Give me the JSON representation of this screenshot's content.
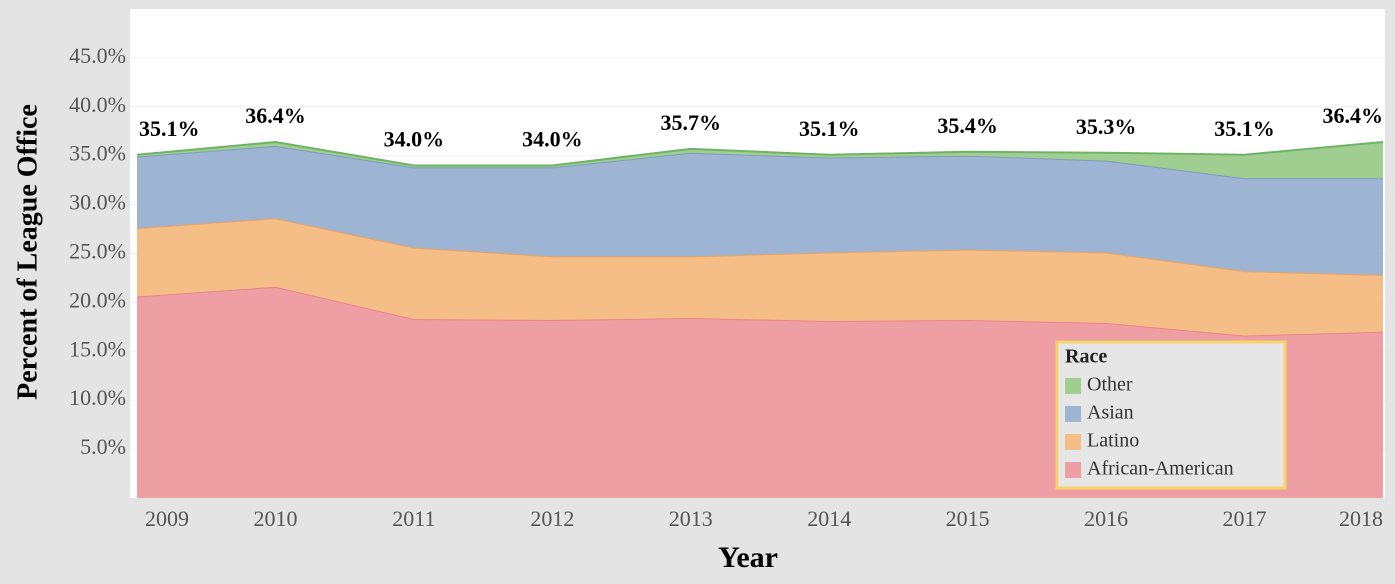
{
  "chart_data": {
    "type": "stacked_area",
    "x_label": "Year",
    "y_label": "Percent of League Office",
    "categories": [
      "2009",
      "2010",
      "2011",
      "2012",
      "2013",
      "2014",
      "2015",
      "2016",
      "2017",
      "2018"
    ],
    "series": [
      {
        "name": "African-American",
        "color": "#ee9fa4",
        "line": "#e8858c",
        "values": [
          20.6,
          21.6,
          18.3,
          18.2,
          18.4,
          18.1,
          18.2,
          17.9,
          16.6,
          17.0
        ]
      },
      {
        "name": "Latino",
        "color": "#f6be87",
        "line": "#eea25f",
        "values": [
          7.0,
          7.0,
          7.3,
          6.5,
          6.3,
          7.0,
          7.2,
          7.2,
          6.6,
          5.8
        ]
      },
      {
        "name": "Asian",
        "color": "#9db4d2",
        "line": "#7f9cc0",
        "values": [
          7.3,
          7.4,
          8.2,
          9.1,
          10.6,
          9.7,
          9.6,
          9.4,
          9.5,
          9.9
        ]
      },
      {
        "name": "Other",
        "color": "#9fce90",
        "line": "#6fb466",
        "values": [
          0.2,
          0.4,
          0.2,
          0.2,
          0.4,
          0.3,
          0.4,
          0.8,
          2.4,
          3.7
        ]
      }
    ],
    "totals": [
      35.1,
      36.4,
      34.0,
      34.0,
      35.7,
      35.1,
      35.4,
      35.3,
      35.1,
      36.4
    ],
    "total_labels": [
      "35.1%",
      "36.4%",
      "34.0%",
      "34.0%",
      "35.7%",
      "35.1%",
      "35.4%",
      "35.3%",
      "35.1%",
      "36.4%"
    ],
    "legend_title": "Race",
    "legend": "bottom-right",
    "ylim": [
      0,
      50
    ],
    "yticks": [
      {
        "value": 5,
        "label": "5.0%"
      },
      {
        "value": 10,
        "label": "10.0%"
      },
      {
        "value": 15,
        "label": "15.0%"
      },
      {
        "value": 20,
        "label": "20.0%"
      },
      {
        "value": 25,
        "label": "25.0%"
      },
      {
        "value": 30,
        "label": "30.0%"
      },
      {
        "value": 35,
        "label": "35.0%"
      },
      {
        "value": 40,
        "label": "40.0%"
      },
      {
        "value": 45,
        "label": "45.0%"
      }
    ],
    "grid": true
  }
}
